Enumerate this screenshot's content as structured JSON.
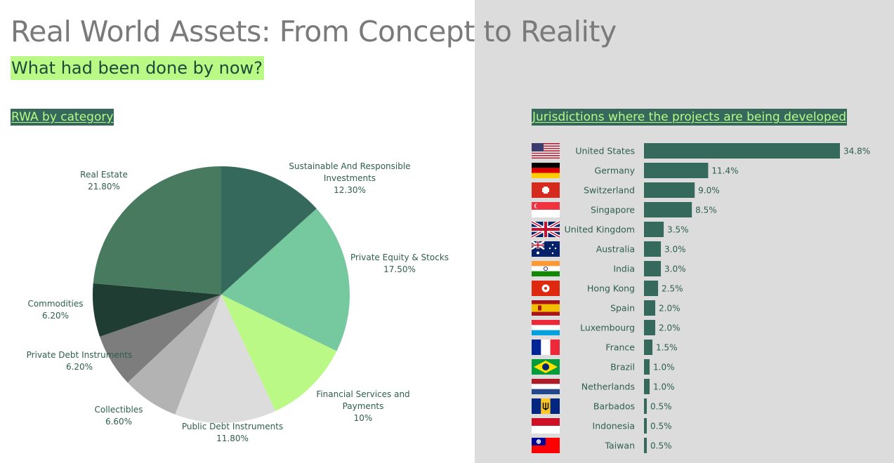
{
  "page": {
    "title": "Real World Assets: From Concept to Reality",
    "subtitle": "What had been done by now?"
  },
  "colors": {
    "accent_green": "#baf986",
    "dark_green": "#35695b",
    "panel_grey": "#dcdcdc"
  },
  "chart_data": [
    {
      "type": "pie",
      "title": "RWA by category",
      "slices": [
        {
          "label": [
            "Sustainable And Responsible",
            "Investments"
          ],
          "value_text": "12.30%",
          "value": 12.3,
          "color": "#35695b"
        },
        {
          "label": [
            "Private Equity & Stocks"
          ],
          "value_text": "17.50%",
          "value": 17.5,
          "color": "#76c89e"
        },
        {
          "label": [
            "Financial Services and",
            "Payments"
          ],
          "value_text": "10%",
          "value": 10.0,
          "color": "#baf986"
        },
        {
          "label": [
            "Public Debt Instruments"
          ],
          "value_text": "11.80%",
          "value": 11.8,
          "color": "#dcdcdc"
        },
        {
          "label": [
            "Collectibles"
          ],
          "value_text": "6.60%",
          "value": 6.6,
          "color": "#b3b3b3"
        },
        {
          "label": [
            "Private Debt Instruments"
          ],
          "value_text": "6.20%",
          "value": 6.2,
          "color": "#7d7d7d"
        },
        {
          "label": [
            "Commodities"
          ],
          "value_text": "6.20%",
          "value": 6.2,
          "color": "#1f3d33"
        },
        {
          "label": [
            "Real Estate"
          ],
          "value_text": "21.80%",
          "value": 21.8,
          "color": "#477a5f"
        }
      ]
    },
    {
      "type": "bar",
      "orientation": "horizontal",
      "title": "Jurisdictions where the projects are being developed",
      "categories": [
        "United States",
        "Germany",
        "Switzerland",
        "Singapore",
        "United Kingdom",
        "Australia",
        "India",
        "Hong Kong",
        "Spain",
        "Luxembourg",
        "France",
        "Brazil",
        "Netherlands",
        "Barbados",
        "Indonesia",
        "Taiwan"
      ],
      "values": [
        34.8,
        11.4,
        9.0,
        8.5,
        3.5,
        3.0,
        3.0,
        2.5,
        2.0,
        2.0,
        1.5,
        1.0,
        1.0,
        0.5,
        0.5,
        0.5
      ],
      "value_labels": [
        "34.8%",
        "11.4%",
        "9.0%",
        "8.5%",
        "3.5%",
        "3.0%",
        "3.0%",
        "2.5%",
        "2.0%",
        "2.0%",
        "1.5%",
        "1.0%",
        "1.0%",
        "0.5%",
        "0.5%",
        "0.5%"
      ],
      "flags": [
        "us-flag-icon",
        "germany-flag-icon",
        "switzerland-flag-icon",
        "singapore-flag-icon",
        "uk-flag-icon",
        "australia-flag-icon",
        "india-flag-icon",
        "hong-kong-flag-icon",
        "spain-flag-icon",
        "luxembourg-flag-icon",
        "france-flag-icon",
        "brazil-flag-icon",
        "netherlands-flag-icon",
        "barbados-flag-icon",
        "indonesia-flag-icon",
        "taiwan-flag-icon"
      ],
      "bar_color": "#35695b",
      "xlim": [
        0,
        34.8
      ]
    }
  ]
}
